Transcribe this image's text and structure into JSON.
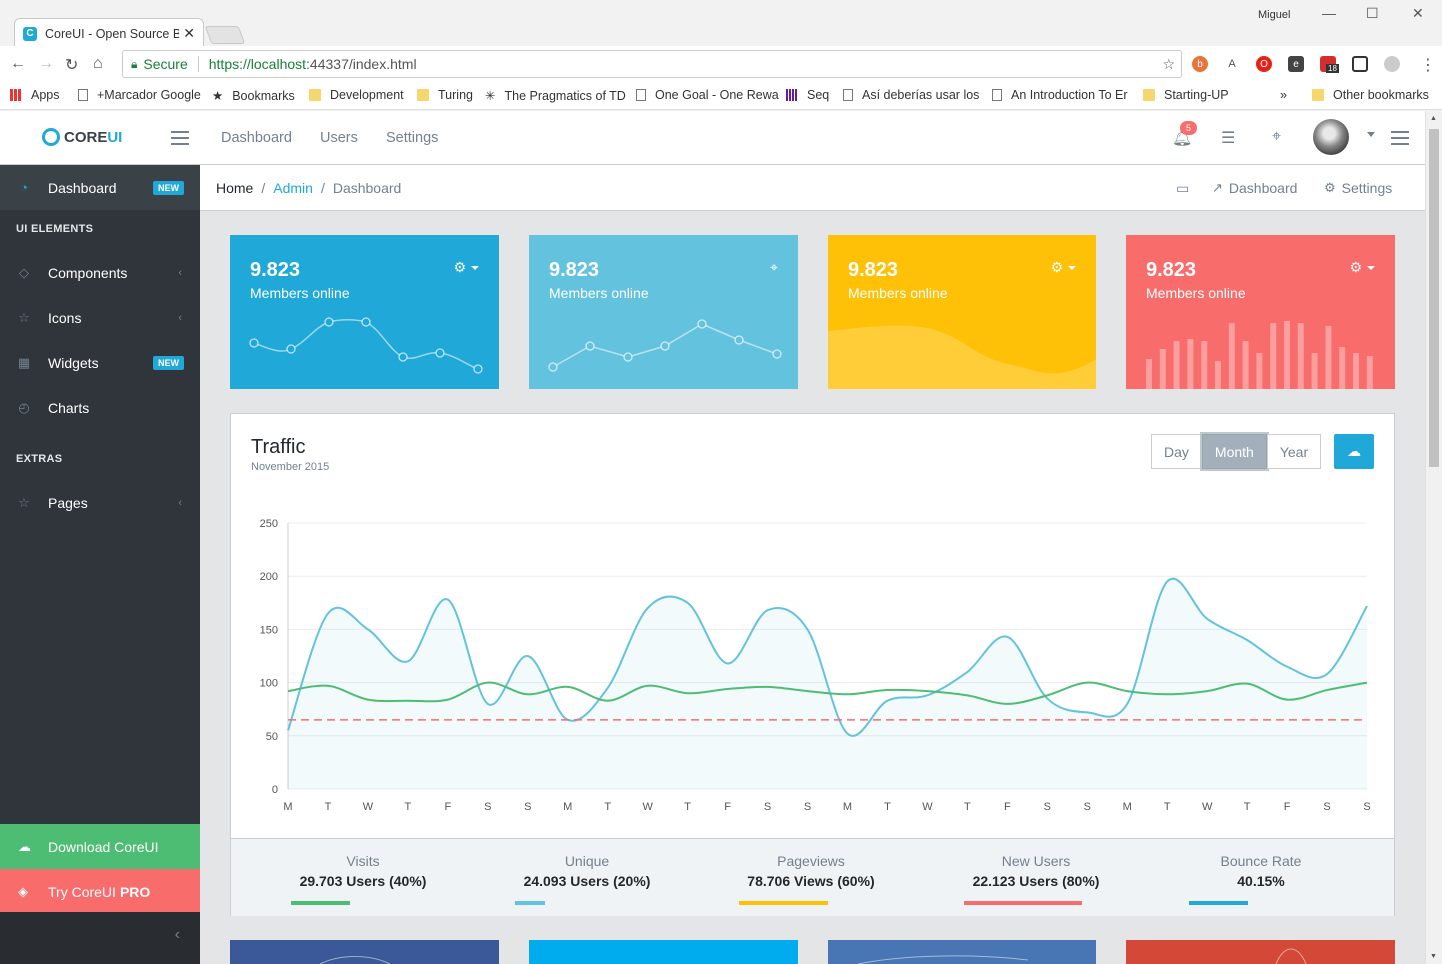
{
  "browser": {
    "tab_title": "CoreUI - Open Source Bo",
    "tab_close": "✕",
    "user": "Miguel",
    "secure_label": "Secure",
    "url_scheme_host": "https://localhost",
    "url_rest": ":44337/index.html",
    "bookmarks": [
      {
        "label": "Apps",
        "icon": "apps-grid"
      },
      {
        "label": "+Marcador Google",
        "icon": "page"
      },
      {
        "label": "Bookmarks",
        "icon": "star"
      },
      {
        "label": "Development",
        "icon": "folder"
      },
      {
        "label": "Turing",
        "icon": "folder"
      },
      {
        "label": "The Pragmatics of TD",
        "icon": "starburst"
      },
      {
        "label": "One Goal - One Rewa",
        "icon": "page"
      },
      {
        "label": "Seq",
        "icon": "bars"
      },
      {
        "label": "Así deberías usar los",
        "icon": "page"
      },
      {
        "label": "An Introduction To Er",
        "icon": "page"
      },
      {
        "label": "Starting-UP",
        "icon": "folder"
      },
      {
        "label": "»",
        "icon": ""
      },
      {
        "label": "Other bookmarks",
        "icon": "folder"
      }
    ],
    "ext_badge": "18"
  },
  "header": {
    "brand_core": "CORE",
    "brand_ui": "UI",
    "nav": [
      "Dashboard",
      "Users",
      "Settings"
    ],
    "notification_count": "5"
  },
  "sidebar": {
    "items": [
      {
        "label": "Dashboard",
        "badge": "NEW",
        "icon": "speedometer-icon"
      },
      {
        "label": "Components",
        "icon": "puzzle-icon"
      },
      {
        "label": "Icons",
        "icon": "star-icon"
      },
      {
        "label": "Widgets",
        "badge": "NEW",
        "icon": "calculator-icon"
      },
      {
        "label": "Charts",
        "icon": "pie-chart-icon"
      },
      {
        "label": "Pages",
        "icon": "star-icon"
      }
    ],
    "titles": [
      "UI ELEMENTS",
      "EXTRAS"
    ],
    "download_label": "Download CoreUI",
    "try_label": "Try CoreUI",
    "try_pro": "PRO"
  },
  "breadcrumb": {
    "items": [
      "Home",
      "Admin",
      "Dashboard"
    ],
    "right_dashboard": "Dashboard",
    "right_settings": "Settings"
  },
  "cards": [
    {
      "value": "9.823",
      "label": "Members online",
      "color": "#20a8d8"
    },
    {
      "value": "9.823",
      "label": "Members online",
      "color": "#63c2de"
    },
    {
      "value": "9.823",
      "label": "Members online",
      "color": "#ffc107"
    },
    {
      "value": "9.823",
      "label": "Members online",
      "color": "#f86c6b"
    }
  ],
  "traffic": {
    "title": "Traffic",
    "subtitle": "November 2015",
    "ranges": [
      "Day",
      "Month",
      "Year"
    ],
    "active_range": "Month",
    "stats": [
      {
        "label": "Visits",
        "value": "29.703 Users (40%)",
        "percent": 40,
        "color": "#4dbd74"
      },
      {
        "label": "Unique",
        "value": "24.093 Users (20%)",
        "percent": 20,
        "color": "#63c2de"
      },
      {
        "label": "Pageviews",
        "value": "78.706 Views (60%)",
        "percent": 60,
        "color": "#ffc107"
      },
      {
        "label": "New Users",
        "value": "22.123 Users (80%)",
        "percent": 80,
        "color": "#f86c6b"
      },
      {
        "label": "Bounce Rate",
        "value": "40.15%",
        "percent": 40,
        "color": "#20a8d8"
      }
    ]
  },
  "chart_data": {
    "type": "line",
    "categories": [
      "M",
      "T",
      "W",
      "T",
      "F",
      "S",
      "S",
      "M",
      "T",
      "W",
      "T",
      "F",
      "S",
      "S",
      "M",
      "T",
      "W",
      "T",
      "F",
      "S",
      "S",
      "M",
      "T",
      "W",
      "T",
      "F",
      "S",
      "S"
    ],
    "ylim": [
      0,
      250
    ],
    "yticks": [
      0,
      50,
      100,
      150,
      200,
      250
    ],
    "grid": true,
    "series": [
      {
        "color": "#63c2de",
        "fill": true,
        "values": [
          55,
          165,
          150,
          120,
          178,
          80,
          125,
          65,
          95,
          170,
          175,
          118,
          168,
          150,
          52,
          83,
          88,
          110,
          143,
          85,
          72,
          80,
          195,
          160,
          140,
          115,
          108,
          172
        ]
      },
      {
        "color": "#4dbd74",
        "fill": false,
        "values": [
          92,
          97,
          84,
          83,
          84,
          100,
          89,
          96,
          83,
          97,
          90,
          94,
          96,
          92,
          89,
          93,
          92,
          88,
          80,
          88,
          100,
          92,
          89,
          92,
          99,
          84,
          93,
          100
        ]
      },
      {
        "color": "#f86c6b",
        "dashed": true,
        "fill": false,
        "values": [
          65,
          65,
          65,
          65,
          65,
          65,
          65,
          65,
          65,
          65,
          65,
          65,
          65,
          65,
          65,
          65,
          65,
          65,
          65,
          65,
          65,
          65,
          65,
          65,
          65,
          65,
          65,
          65
        ]
      }
    ]
  }
}
